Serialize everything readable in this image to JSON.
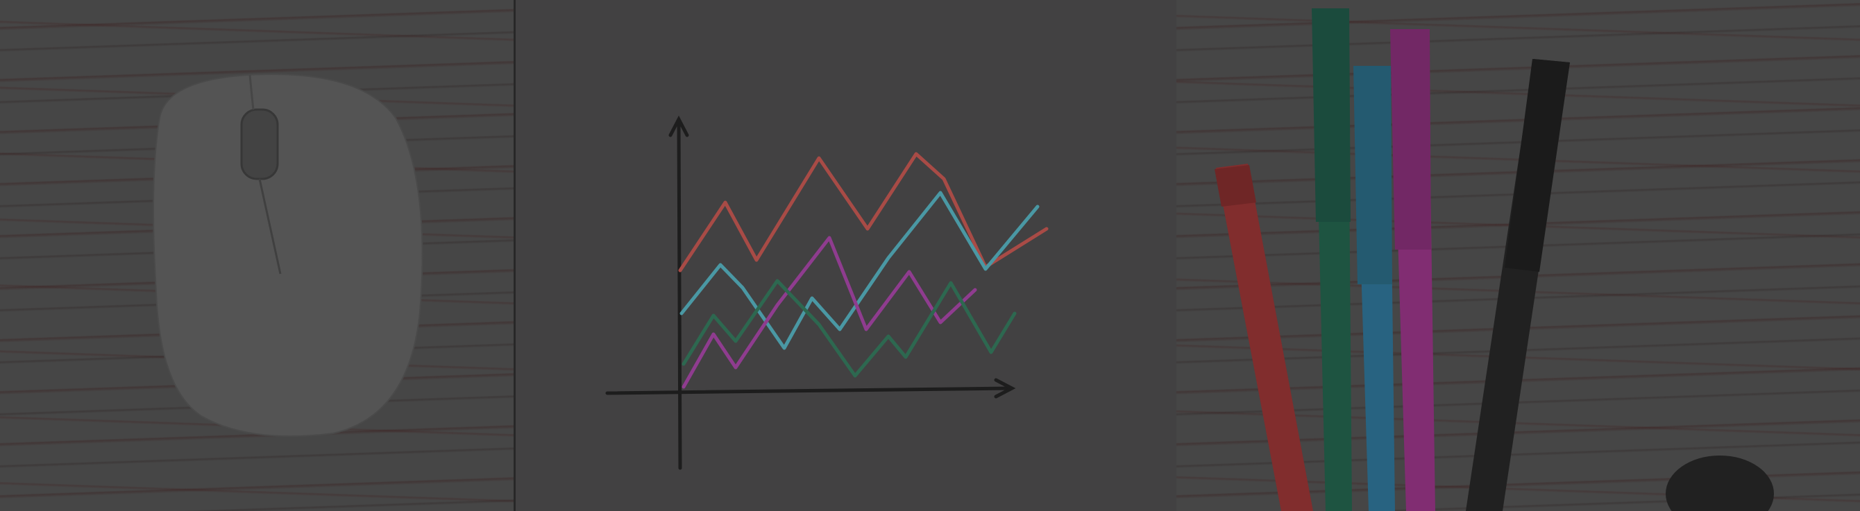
{
  "scene": {
    "description_tags": [
      "desk",
      "mouse",
      "hand-drawn-chart",
      "felt-tip-pens"
    ],
    "colors": {
      "overlay": "#3a3a3a",
      "paper": "#464546",
      "wood": "#4a4a4a",
      "line_red": "#b5504a",
      "line_cyan": "#4fa3b0",
      "line_purple": "#9a3f9a",
      "line_green": "#2f6f55",
      "pen_red": "#8a2f2f",
      "pen_green": "#1f5a45",
      "pen_blue": "#2a6a8a",
      "pen_magenta": "#8a2f7a",
      "pen_black": "#222222"
    }
  }
}
